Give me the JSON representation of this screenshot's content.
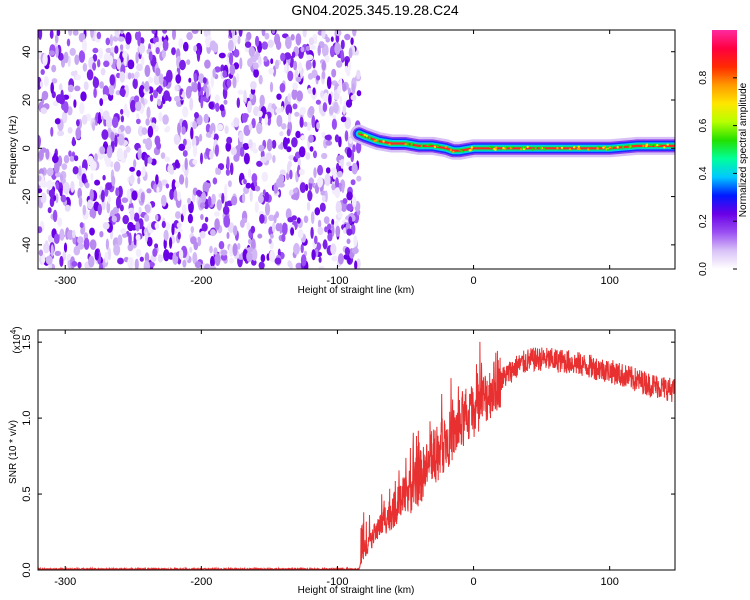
{
  "title": "GN04.2025.345.19.28.C24",
  "colorbar": {
    "label": "Normalized spectral amplitude",
    "ticks": [
      0.0,
      0.2,
      0.4,
      0.6,
      0.8
    ],
    "colors": [
      "#ffffff",
      "#d9c2f7",
      "#9a4ff2",
      "#6a00e6",
      "#0019ff",
      "#00c8ff",
      "#00ff9a",
      "#22e000",
      "#b6ff00",
      "#ffe600",
      "#ff9a00",
      "#ff2a00",
      "#ff0040",
      "#ff2aa0"
    ]
  },
  "chart_data": [
    {
      "type": "heatmap",
      "xlabel": "Height of straight line (km)",
      "ylabel": "Frequency (Hz)",
      "xlim": [
        -320,
        148
      ],
      "ylim": [
        -50,
        49
      ],
      "xticks": [
        -300,
        -200,
        -100,
        0,
        100
      ],
      "yticks": [
        -40,
        -20,
        0,
        20,
        40
      ],
      "noise_region_x": [
        -320,
        -84
      ],
      "signal_track": {
        "x": [
          -84,
          -80,
          -70,
          -60,
          -50,
          -40,
          -30,
          -20,
          -15,
          -10,
          0,
          20,
          40,
          60,
          80,
          100,
          120,
          140,
          148
        ],
        "frequency": [
          6,
          5,
          3,
          2,
          2,
          1,
          1,
          0,
          -1,
          -1,
          0,
          0,
          0,
          0,
          0,
          0,
          1,
          1,
          1
        ]
      }
    },
    {
      "type": "line",
      "xlabel": "Height of straight line (km)",
      "ylabel": "SNR (10 * v/v)",
      "y_multiplier": "(x10",
      "y_multiplier_exp": "4",
      "xlim": [
        -320,
        148
      ],
      "ylim": [
        0,
        1.58
      ],
      "xticks": [
        -300,
        -200,
        -100,
        0,
        100
      ],
      "yticks": [
        0.0,
        0.5,
        1.0,
        1.5
      ],
      "ytick_labels": [
        "0.0",
        "0.5",
        "1.0",
        "1.5"
      ],
      "color": "#e83030",
      "series": [
        {
          "x": [
            -320,
            -84,
            -82,
            -75,
            -70,
            -60,
            -50,
            -40,
            -30,
            -20,
            -10,
            0,
            10,
            20,
            30,
            40,
            50,
            60,
            70,
            80,
            90,
            100,
            110,
            120,
            130,
            140,
            148
          ],
          "values": [
            0.005,
            0.005,
            0.08,
            0.2,
            0.28,
            0.38,
            0.48,
            0.6,
            0.72,
            0.84,
            0.95,
            1.05,
            1.15,
            1.25,
            1.33,
            1.38,
            1.39,
            1.38,
            1.37,
            1.35,
            1.33,
            1.31,
            1.28,
            1.25,
            1.22,
            1.2,
            1.18
          ]
        }
      ]
    }
  ]
}
